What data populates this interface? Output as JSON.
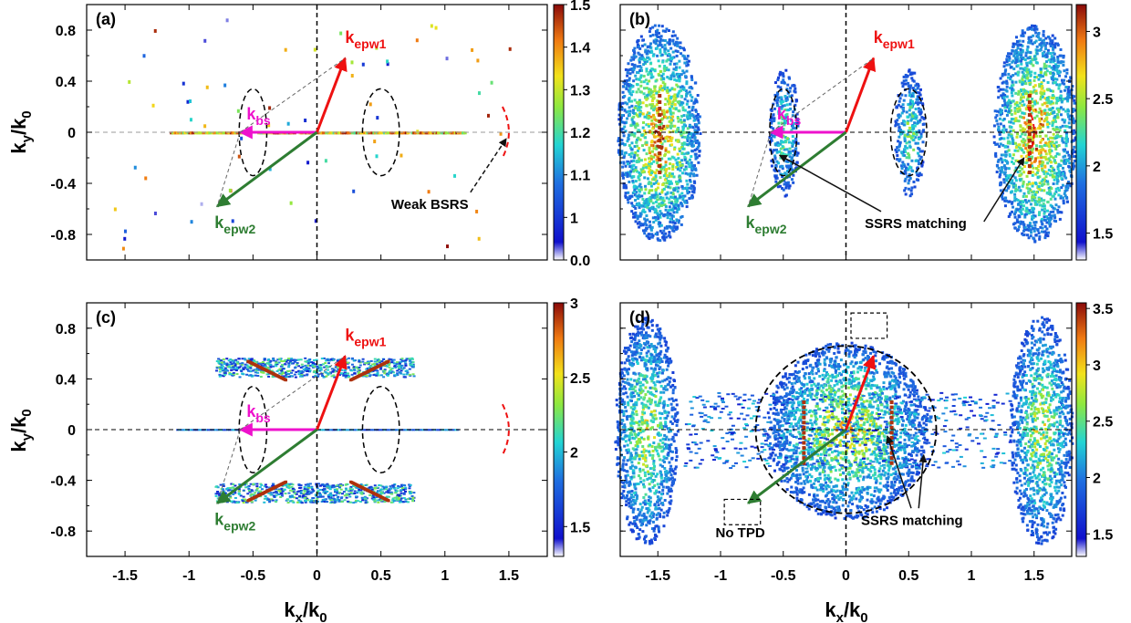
{
  "figure": {
    "xlabel": {
      "main": "k",
      "sub": "x",
      "mid": "/k",
      "sub2": "0"
    },
    "ylabel": {
      "main": "k",
      "sub": "y",
      "mid": "/k",
      "sub2": "0"
    }
  },
  "chart_data": [
    {
      "type": "heatmap",
      "panel": "(a)",
      "xlim": [
        -1.8,
        1.8
      ],
      "ylim": [
        -1.0,
        1.0
      ],
      "xticks": [
        "-1.5",
        "-1",
        "-0.5",
        "0",
        "0.5",
        "1",
        "1.5"
      ],
      "yticks": [
        "0.8",
        "0.4",
        "0",
        "-0.4",
        "-0.8"
      ],
      "colorbar": {
        "ticks": [
          "1.5",
          "1.4",
          "1.3",
          "1.2",
          "1.1",
          "1",
          "0.0"
        ],
        "range": [
          0.0,
          1.5
        ]
      },
      "vectors": {
        "k_epw1": {
          "from": [
            0,
            0
          ],
          "to": [
            0.22,
            0.58
          ],
          "color": "#ee1111"
        },
        "k_bs": {
          "from": [
            0,
            0
          ],
          "to": [
            -0.6,
            0
          ],
          "color": "#ee11cc"
        },
        "k_epw2": {
          "from": [
            0,
            0
          ],
          "to": [
            -0.78,
            -0.58
          ],
          "color": "#2e7d32"
        }
      },
      "labels": {
        "epw1": {
          "k": "k",
          "sub": "epw1"
        },
        "bs": {
          "k": "k",
          "sub": "bs"
        },
        "epw2": {
          "k": "k",
          "sub": "epw2"
        }
      },
      "annotations": [
        "Weak BSRS"
      ]
    },
    {
      "type": "heatmap",
      "panel": "(b)",
      "xlim": [
        -1.8,
        1.8
      ],
      "ylim": [
        -1.0,
        1.0
      ],
      "xticks": [
        "-1.5",
        "-1",
        "-0.5",
        "0",
        "0.5",
        "1",
        "1.5"
      ],
      "yticks": [
        "0.8",
        "0.4",
        "0",
        "-0.4",
        "-0.8"
      ],
      "colorbar": {
        "ticks": [
          "3",
          "2.5",
          "2",
          "1.5"
        ],
        "range": [
          1.3,
          3.2
        ]
      },
      "vectors": {
        "k_epw1": {
          "from": [
            0,
            0
          ],
          "to": [
            0.22,
            0.58
          ],
          "color": "#ee1111"
        },
        "k_bs": {
          "from": [
            0,
            0
          ],
          "to": [
            -0.6,
            0
          ],
          "color": "#ee11cc"
        },
        "k_epw2": {
          "from": [
            0,
            0
          ],
          "to": [
            -0.78,
            -0.58
          ],
          "color": "#2e7d32"
        }
      },
      "labels": {
        "epw1": {
          "k": "k",
          "sub": "epw1"
        },
        "bs": {
          "k": "k",
          "sub": "bs"
        },
        "epw2": {
          "k": "k",
          "sub": "epw2"
        }
      },
      "annotations": [
        "SSRS matching"
      ]
    },
    {
      "type": "heatmap",
      "panel": "(c)",
      "xlim": [
        -1.8,
        1.8
      ],
      "ylim": [
        -1.0,
        1.0
      ],
      "xticks": [
        "-1.5",
        "-1",
        "-0.5",
        "0",
        "0.5",
        "1",
        "1.5"
      ],
      "yticks": [
        "0.8",
        "0.4",
        "0",
        "-0.4",
        "-0.8"
      ],
      "colorbar": {
        "ticks": [
          "3",
          "2.5",
          "2",
          "1.5"
        ],
        "range": [
          1.3,
          3.0
        ]
      },
      "vectors": {
        "k_epw1": {
          "from": [
            0,
            0
          ],
          "to": [
            0.22,
            0.58
          ],
          "color": "#ee1111"
        },
        "k_bs": {
          "from": [
            0,
            0
          ],
          "to": [
            -0.6,
            0
          ],
          "color": "#ee11cc"
        },
        "k_epw2": {
          "from": [
            0,
            0
          ],
          "to": [
            -0.78,
            -0.58
          ],
          "color": "#2e7d32"
        }
      },
      "labels": {
        "epw1": {
          "k": "k",
          "sub": "epw1"
        },
        "bs": {
          "k": "k",
          "sub": "bs"
        },
        "epw2": {
          "k": "k",
          "sub": "epw2"
        }
      },
      "annotations": []
    },
    {
      "type": "heatmap",
      "panel": "(d)",
      "xlim": [
        -1.8,
        1.8
      ],
      "ylim": [
        -1.0,
        1.0
      ],
      "xticks": [
        "-1.5",
        "-1",
        "-0.5",
        "0",
        "0.5",
        "1",
        "1.5"
      ],
      "yticks": [
        "0.8",
        "0.4",
        "0",
        "-0.4",
        "-0.8"
      ],
      "colorbar": {
        "ticks": [
          "3.5",
          "3",
          "2.5",
          "2",
          "1.5"
        ],
        "range": [
          1.3,
          3.55
        ]
      },
      "vectors": {
        "k_epw1": {
          "from": [
            0,
            0
          ],
          "to": [
            0.22,
            0.58
          ],
          "color": "#ee1111"
        },
        "k_epw2": {
          "from": [
            0,
            0
          ],
          "to": [
            -0.78,
            -0.58
          ],
          "color": "#2e7d32"
        }
      },
      "labels": {},
      "annotations": [
        "No TPD",
        "SSRS matching"
      ]
    }
  ]
}
